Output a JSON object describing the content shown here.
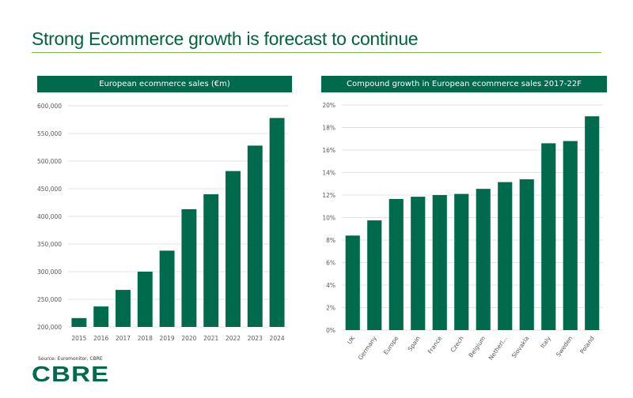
{
  "page": {
    "title": "Strong Ecommerce growth is forecast to continue",
    "source": "Source: Euromonitor, CBRE",
    "logo": "CBRE",
    "accent_color": "#006A4D",
    "rule_color": "#7DBB44"
  },
  "chart_data": [
    {
      "type": "bar",
      "title": "European ecommerce sales (€m)",
      "xlabel": "",
      "ylabel": "",
      "categories": [
        "2015",
        "2016",
        "2017",
        "2018",
        "2019",
        "2020",
        "2021",
        "2022",
        "2023",
        "2024"
      ],
      "values": [
        216000,
        237000,
        267000,
        300000,
        338000,
        413000,
        440000,
        482000,
        528000,
        578000
      ],
      "ylim": [
        200000,
        600000
      ],
      "yticks": [
        "200,000",
        "250,000",
        "300,000",
        "350,000",
        "400,000",
        "450,000",
        "500,000",
        "550,000",
        "600,000"
      ],
      "grid": true,
      "bar_color": "#006A4D"
    },
    {
      "type": "bar",
      "title": "Compound growth in European ecommerce sales 2017-22F",
      "xlabel": "",
      "ylabel": "",
      "categories": [
        "UK",
        "Germany",
        "Europe",
        "Spain",
        "France",
        "Czech",
        "Belgium",
        "Netherl...",
        "Slovakia",
        "Italy",
        "Sweden",
        "Poland"
      ],
      "values": [
        8.4,
        9.75,
        11.65,
        11.85,
        12.0,
        12.1,
        12.55,
        13.15,
        13.4,
        16.6,
        16.8,
        19.0
      ],
      "unit": "%",
      "ylim": [
        0,
        20
      ],
      "yticks": [
        "0%",
        "2%",
        "4%",
        "6%",
        "8%",
        "10%",
        "12%",
        "14%",
        "16%",
        "18%",
        "20%"
      ],
      "grid": true,
      "bar_color": "#006A4D"
    }
  ]
}
